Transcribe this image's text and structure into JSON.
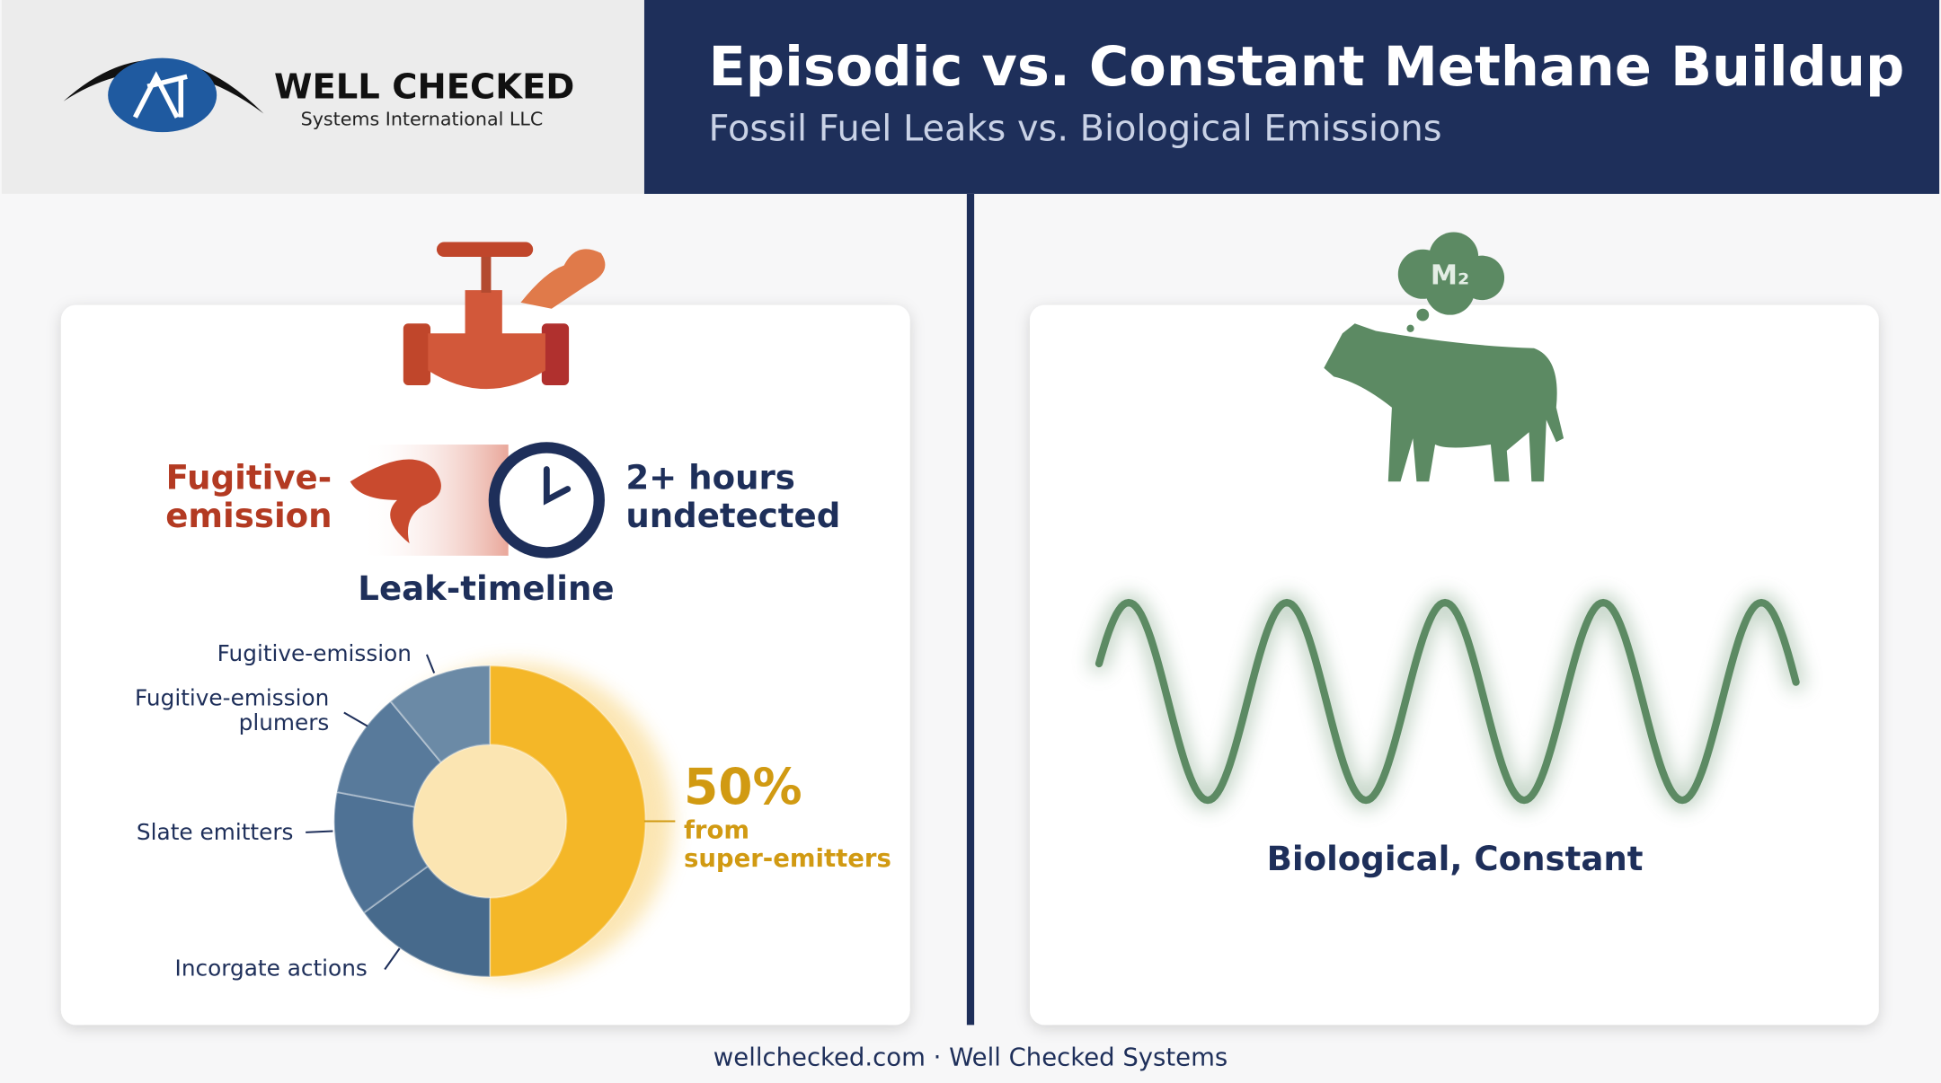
{
  "header": {
    "logo_name": "WELL CHECKED",
    "logo_sub": "Systems International LLC",
    "title": "Episodic vs. Constant Methane Buildup",
    "subtitle": "Fossil Fuel Leaks vs. Biological Emissions"
  },
  "left_panel": {
    "emission_label": "Fugitive-\nemission",
    "duration_label": "2+ hours\nundetected",
    "timeline_label": "Leak-timeline"
  },
  "right_panel": {
    "cloud_label": "M₂",
    "caption": "Biological, Constant"
  },
  "chart_data": {
    "type": "donut",
    "categories": [
      "from\nsuper-emitters",
      "Incorgate actions",
      "Slate emitters",
      "Fugitive-emission\nplumers",
      "Fugitive-emission"
    ],
    "values": [
      50,
      15,
      13,
      11,
      11
    ],
    "value_labels": [
      "50%",
      null,
      null,
      null,
      null
    ],
    "colors": [
      "#f4b728",
      "#476a8c",
      "#4f7295",
      "#587a9b",
      "#6b8aa6"
    ]
  },
  "footer": {
    "text": "wellchecked.com · Well Checked Systems"
  }
}
